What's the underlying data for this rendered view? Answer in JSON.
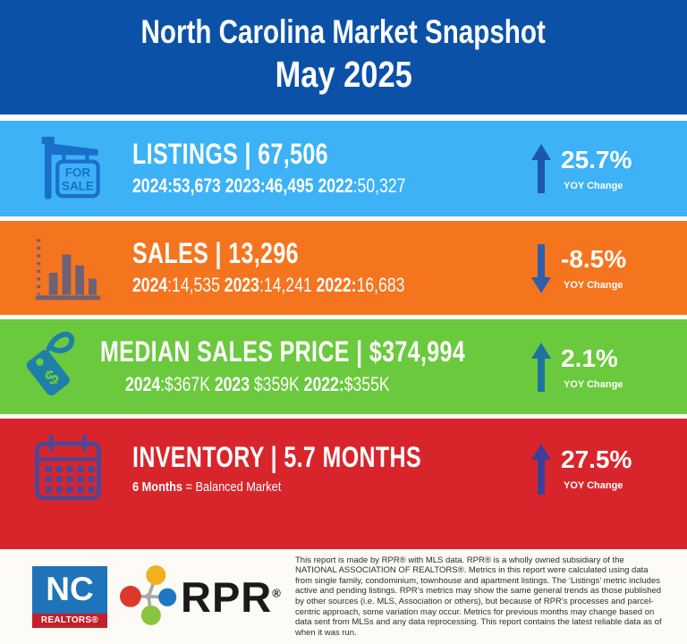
{
  "colors": {
    "page_bg": "#fdfcf7"
  },
  "chart_data": {
    "type": "table",
    "title": "North Carolina Market Snapshot",
    "subtitle": "May 2025",
    "metrics": [
      {
        "name": "Listings",
        "current": 67506,
        "yoy_change_pct": 25.7,
        "direction": "up",
        "history": {
          "2024": 53673,
          "2023": 46495,
          "2022": 50327
        }
      },
      {
        "name": "Sales",
        "current": 13296,
        "yoy_change_pct": -8.5,
        "direction": "down",
        "history": {
          "2024": 14535,
          "2023": 14241,
          "2022": 16683
        }
      },
      {
        "name": "Median Sales Price",
        "current": 374994,
        "yoy_change_pct": 2.1,
        "direction": "up",
        "history": {
          "2024": "$367K",
          "2023": "$359K",
          "2022": "$355K"
        }
      },
      {
        "name": "Inventory (months)",
        "current": 5.7,
        "yoy_change_pct": 27.5,
        "direction": "up",
        "note": "6 Months = Balanced Market"
      }
    ]
  },
  "header": {
    "title": "North Carolina Market Snapshot",
    "subtitle": "May 2025",
    "bg": "#0b51a7"
  },
  "bands": [
    {
      "metric": "Listings",
      "title": "LISTINGS | 67,506",
      "stats": [
        {
          "t": "2024:53,673 ",
          "b": true
        },
        {
          "t": "2023:46,495 ",
          "b": true
        },
        {
          "t": "2022",
          "b": true
        },
        {
          "t": ":50,327",
          "b": false
        }
      ],
      "pct": "25.7%",
      "yoy_label": "YOY Change",
      "direction": "up",
      "icon": "for-sale-sign-icon",
      "icon_lines": [
        "FOR",
        "SALE"
      ],
      "colors": {
        "bg": "#3db2f7",
        "icon": "#1a6fca",
        "arrow": "#1b57b0"
      }
    },
    {
      "metric": "Sales",
      "title": "SALES | 13,296",
      "stats": [
        {
          "t": "2024",
          "b": true
        },
        {
          "t": ":14,535 ",
          "b": false
        },
        {
          "t": "2023",
          "b": true
        },
        {
          "t": ":14,241 ",
          "b": false
        },
        {
          "t": "2022:",
          "b": true
        },
        {
          "t": "16,683",
          "b": false
        }
      ],
      "pct": "-8.5%",
      "yoy_label": "YOY Change",
      "direction": "down",
      "icon": "bar-chart-icon",
      "colors": {
        "bg": "#f5751f",
        "icon": "#6e6175",
        "arrow": "#2f5fa8"
      }
    },
    {
      "metric": "Median Sales Price",
      "title": "MEDIAN SALES PRICE | $374,994",
      "stats": [
        {
          "t": "2024",
          "b": true
        },
        {
          "t": ":$367K ",
          "b": false
        },
        {
          "t": "2023",
          "b": true
        },
        {
          "t": " $359K  ",
          "b": false
        },
        {
          "t": "2022:",
          "b": true
        },
        {
          "t": "$355K",
          "b": false
        }
      ],
      "pct": "2.1%",
      "yoy_label": "YOY Change",
      "direction": "up",
      "icon": "price-tag-icon",
      "icon_symbol": "$",
      "colors": {
        "bg": "#6bc93e",
        "icon": "#1f7fa9",
        "arrow": "#1f729f"
      }
    },
    {
      "metric": "Inventory",
      "title": "INVENTORY | 5.7 MONTHS",
      "stats": [
        {
          "t": "6 Months",
          "b": true
        },
        {
          "t": " = Balanced Market",
          "b": false
        }
      ],
      "pct": "27.5%",
      "yoy_label": "YOY Change",
      "direction": "up",
      "icon": "calendar-icon",
      "colors": {
        "bg": "#d8252c",
        "icon": "#4f4796",
        "arrow": "#3c3f99"
      }
    }
  ],
  "footer": {
    "bg": "#fdfbf5",
    "nc_logo": {
      "line1": "NC",
      "line2": "REALTORS®",
      "blue": "#1e73b9",
      "red": "#c2202a"
    },
    "rpr_logo": {
      "text": "RPR",
      "reg": "®",
      "text_color": "#1a1a1a",
      "circle_colors": {
        "top": "#f2b01e",
        "left": "#d93a2b",
        "right": "#1d78c1",
        "bottom": "#8bc43f"
      },
      "connector": "#a7a9ac"
    },
    "disclaimer": "This report is made by RPR® with MLS data. RPR® is a wholly owned subsidiary of the NATIONAL ASSOCIATION OF REALTORS®. Metrics in this report were calculated using data from single family, condominium, townhouse and apartment listings. The ‘Listings’ metric includes active and pending listings. RPR’s metrics may show the same general trends as those published by other sources (i.e. MLS, Association or others), but because of RPR’s processes and parcel-centric approach, some variation may occur. Metrics for previous months may change based on data sent from MLSs and any data reprocessing. This report contains the latest reliable data as of when it was run."
  }
}
